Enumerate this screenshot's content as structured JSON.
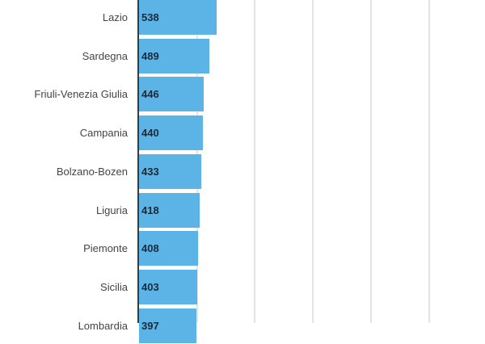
{
  "chart_data": {
    "type": "bar",
    "orientation": "horizontal",
    "categories": [
      "Lazio",
      "Sardegna",
      "Friuli-Venezia Giulia",
      "Campania",
      "Bolzano-Bozen",
      "Liguria",
      "Piemonte",
      "Sicilia",
      "Lombardia"
    ],
    "values": [
      538,
      489,
      446,
      440,
      433,
      418,
      408,
      403,
      397
    ],
    "data_labels": [
      "538",
      "489",
      "446",
      "440",
      "433",
      "418",
      "408",
      "403",
      "397"
    ],
    "title": "",
    "xlabel": "",
    "ylabel": "",
    "grid": true,
    "gridlines_at": [
      400,
      800,
      1200,
      1600,
      2000
    ],
    "bar_color": "#5cb3e6",
    "note": "Last row partially cut off at bottom edge"
  }
}
